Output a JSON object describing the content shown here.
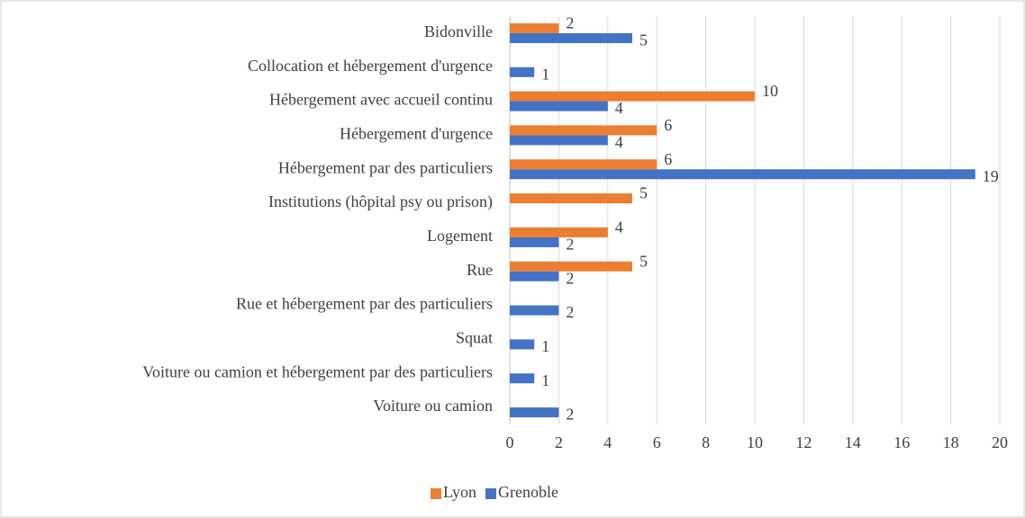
{
  "chart_data": {
    "type": "barh",
    "categories": [
      "Bidonville",
      "Collocation et hébergement d'urgence",
      "Hébergement avec accueil continu",
      "Hébergement d'urgence",
      "Hébergement par des particuliers",
      "Institutions (hôpital psy ou prison)",
      "Logement",
      "Rue",
      "Rue et hébergement par des particuliers",
      "Squat",
      "Voiture ou camion et hébergement par des particuliers",
      "Voiture ou camion"
    ],
    "series": [
      {
        "name": "Lyon",
        "color": "#ed7d31",
        "values": [
          2,
          null,
          10,
          6,
          6,
          5,
          4,
          5,
          null,
          null,
          null,
          null
        ]
      },
      {
        "name": "Grenoble",
        "color": "#4472c4",
        "values": [
          5,
          1,
          4,
          4,
          19,
          null,
          2,
          2,
          2,
          1,
          1,
          2
        ]
      }
    ],
    "xlim": [
      0,
      20
    ],
    "xticks": [
      0,
      2,
      4,
      6,
      8,
      10,
      12,
      14,
      16,
      18,
      20
    ],
    "grid": true,
    "legend": "bottom"
  }
}
